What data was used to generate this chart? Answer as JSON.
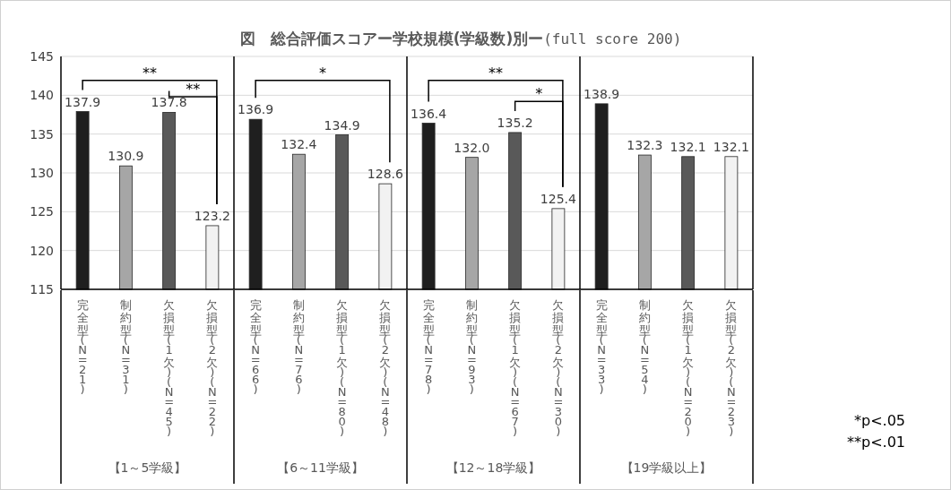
{
  "chart_data": {
    "type": "bar",
    "title": "**図　総合評価スコアー学校規模(学級数)別ー**(full score 200)",
    "categories": [
      "完全型(N=21)",
      "制約型(N=31)",
      "欠損型(1欠)(N=45)",
      "欠損型(2欠)(N=22)",
      "完全型(N=66)",
      "制約型(N=76)",
      "欠損型(1欠)(N=80)",
      "欠損型(2欠)(N=48)",
      "完全型(N=78)",
      "制約型(N=93)",
      "欠損型(1欠)(N=67)",
      "欠損型(2欠)(N=30)",
      "完全型(N=33)",
      "制約型(N=54)",
      "欠損型(1欠)(N=20)",
      "欠損型(2欠)(N=23)"
    ],
    "values": [
      137.9,
      130.9,
      137.8,
      123.2,
      136.9,
      132.4,
      134.9,
      128.6,
      136.4,
      132.0,
      135.2,
      125.4,
      138.9,
      132.3,
      132.1,
      132.1
    ],
    "value_labels": [
      "137.9",
      "130.9",
      "137.8",
      "123.2",
      "136.9",
      "132.4",
      "134.9",
      "128.6",
      "136.4",
      "132.0",
      "135.2",
      "125.4",
      "138.9",
      "132.3",
      "132.1",
      "132.1"
    ],
    "colors": [
      "#1f1f1f",
      "#a6a6a6",
      "#595959",
      "#f2f2f2",
      "#1f1f1f",
      "#a6a6a6",
      "#595959",
      "#f2f2f2",
      "#1f1f1f",
      "#a6a6a6",
      "#595959",
      "#f2f2f2",
      "#1f1f1f",
      "#a6a6a6",
      "#595959",
      "#f2f2f2"
    ],
    "ylim": [
      115,
      145
    ],
    "yticks": [
      115,
      120,
      125,
      130,
      135,
      140,
      145
    ],
    "grid": "y",
    "annotations": [
      "【1～5学級】",
      "【6～11学級】",
      "【12～18学級】",
      "【19学級以上】",
      "**",
      "**",
      "*",
      "**",
      "*",
      "*p<.05",
      "**p<.01"
    ]
  }
}
